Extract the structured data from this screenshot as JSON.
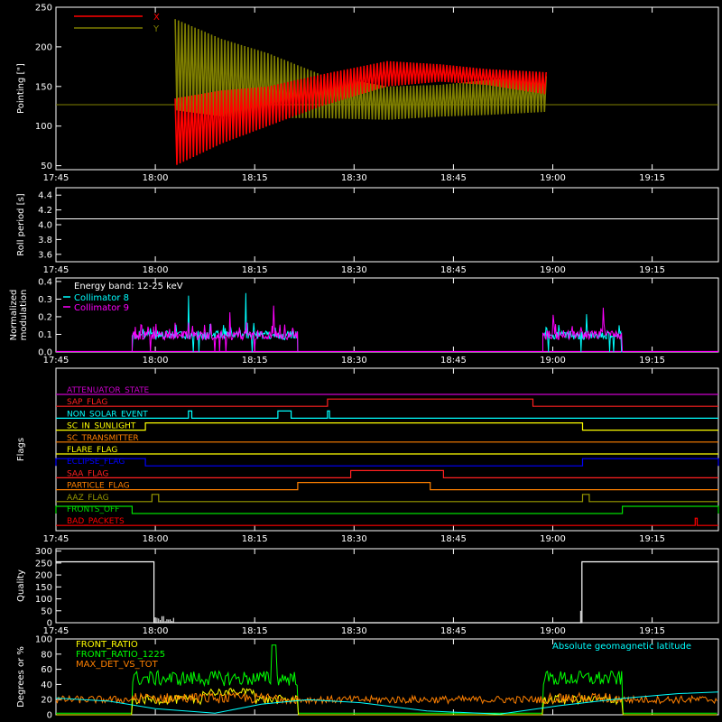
{
  "time_axis": {
    "range": [
      "17:45",
      "19:25"
    ],
    "tick_labels": [
      "17:45",
      "18:00",
      "18:15",
      "18:30",
      "18:45",
      "19:00",
      "19:15"
    ],
    "tick_minutes": [
      0,
      15,
      30,
      45,
      60,
      75,
      90
    ],
    "total_minutes": 100
  },
  "chart_data": [
    {
      "id": "pointing",
      "type": "line",
      "ylabel": "Pointing [\"]",
      "ylim": [
        45,
        250
      ],
      "yticks": [
        50,
        100,
        150,
        200,
        250
      ],
      "legend": [
        {
          "name": "X",
          "color": "#ff0000"
        },
        {
          "name": "Y",
          "color": "#7f7f00"
        }
      ],
      "series": [
        {
          "name": "X",
          "color": "#ff0000",
          "x_min": [
            0,
            15,
            18,
            25,
            32,
            40,
            50,
            58,
            65,
            74,
            79
          ],
          "lower": [
            127,
            127,
            50,
            78,
            100,
            125,
            150,
            156,
            152,
            140,
            127
          ],
          "upper": [
            127,
            127,
            135,
            145,
            150,
            165,
            182,
            178,
            172,
            168,
            127
          ]
        },
        {
          "name": "Y",
          "color": "#7f7f00",
          "x_min": [
            0,
            15,
            18,
            25,
            32,
            40,
            50,
            58,
            65,
            74,
            79
          ],
          "lower": [
            127,
            127,
            120,
            112,
            110,
            110,
            108,
            112,
            114,
            118,
            127
          ],
          "upper": [
            127,
            127,
            235,
            210,
            192,
            165,
            150,
            152,
            158,
            163,
            127
          ]
        }
      ]
    },
    {
      "id": "roll",
      "type": "line",
      "ylabel": "Roll period [s]",
      "ylim": [
        3.5,
        4.5
      ],
      "yticks": [
        3.6,
        3.8,
        4.0,
        4.2,
        4.4
      ],
      "series": [
        {
          "name": "roll",
          "color": "#ffffff",
          "x_min": [
            0,
            100
          ],
          "y": [
            4.08,
            4.08
          ]
        }
      ]
    },
    {
      "id": "modulation",
      "type": "line",
      "ylabel": "Normalized modulation",
      "ylim": [
        0,
        0.42
      ],
      "yticks": [
        0,
        0.1,
        0.2,
        0.3,
        0.4
      ],
      "annotation": "Energy band: 12-25 keV",
      "legend": [
        {
          "name": "Collimator 8",
          "color": "#00ffff"
        },
        {
          "name": "Collimator 9",
          "color": "#ff00ff"
        }
      ],
      "active_intervals": [
        [
          11.5,
          36.5
        ],
        [
          73.5,
          85.5
        ]
      ],
      "baseline": 0.1,
      "series": [
        {
          "name": "Collimator 8",
          "color": "#00ffff"
        },
        {
          "name": "Collimator 9",
          "color": "#ff00ff"
        }
      ]
    },
    {
      "id": "flags",
      "type": "line",
      "ylabel": "Flags",
      "series": [
        {
          "name": "ATTENUATOR_STATE",
          "color": "#cc00cc",
          "steps": []
        },
        {
          "name": "SAP_FLAG",
          "color": "#ff2020",
          "steps": [
            [
              41,
              72
            ]
          ]
        },
        {
          "name": "NON_SOLAR_EVENT",
          "color": "#00ffff",
          "steps": [
            [
              20,
              20.5
            ],
            [
              33.5,
              35.5
            ],
            [
              41,
              41.3
            ]
          ]
        },
        {
          "name": "SC_IN_SUNLIGHT",
          "color": "#ffff00",
          "steps": [
            [
              13.5,
              79.5
            ]
          ]
        },
        {
          "name": "SC_TRANSMITTER",
          "color": "#ff8000",
          "steps": []
        },
        {
          "name": "FLARE_FLAG",
          "color": "#ffff00",
          "steps": []
        },
        {
          "name": "ECLIPSE_FLAG",
          "color": "#0000ff",
          "steps": [
            [
              0,
              13.5
            ],
            [
              79.5,
              100
            ]
          ]
        },
        {
          "name": "SAA_FLAG",
          "color": "#ff2020",
          "steps": [
            [
              44.5,
              58.5
            ]
          ]
        },
        {
          "name": "PARTICLE_FLAG",
          "color": "#ff8000",
          "steps": [
            [
              36.5,
              56.5
            ]
          ]
        },
        {
          "name": "AAZ_FLAG",
          "color": "#999900",
          "steps": [
            [
              14.5,
              15.5
            ],
            [
              79.5,
              80.5
            ]
          ]
        },
        {
          "name": "FRONTS_OFF",
          "color": "#00dd00",
          "steps": [
            [
              0,
              11.5
            ],
            [
              85.5,
              100
            ]
          ]
        },
        {
          "name": "BAD_PACKETS",
          "color": "#ff0000",
          "steps": [
            [
              96.5,
              96.8
            ]
          ]
        }
      ]
    },
    {
      "id": "quality",
      "type": "line",
      "ylabel": "Quality",
      "ylim": [
        0,
        310
      ],
      "yticks": [
        0,
        50,
        100,
        150,
        200,
        250,
        300
      ],
      "series": [
        {
          "name": "Quality",
          "color": "#ffffff",
          "x_min": [
            0,
            14.8,
            14.8,
            79.4,
            79.4,
            100
          ],
          "y": [
            255,
            255,
            0,
            0,
            255,
            255
          ]
        }
      ]
    },
    {
      "id": "ratios",
      "type": "line",
      "ylabel": "Degrees or %",
      "ylim": [
        0,
        100
      ],
      "yticks": [
        0,
        20,
        40,
        60,
        80,
        100
      ],
      "legend": [
        {
          "name": "FRONT_RATIO",
          "color": "#ffff00"
        },
        {
          "name": "FRONT_RATIO_1225",
          "color": "#00ff00"
        },
        {
          "name": "MAX_DET_VS_TOT",
          "color": "#ff8000"
        }
      ],
      "annotation": "Absolute geomagnetic latitude",
      "annotation_color": "#00ffff",
      "series": [
        {
          "name": "FRONT_RATIO",
          "color": "#ffff00"
        },
        {
          "name": "FRONT_RATIO_1225",
          "color": "#00ff00"
        },
        {
          "name": "MAX_DET_VS_TOT",
          "color": "#ff8000"
        },
        {
          "name": "Absolute geomagnetic latitude",
          "color": "#00ffff",
          "x_min": [
            0,
            8,
            15,
            24,
            31,
            38,
            46,
            56,
            67,
            76,
            86,
            94,
            100
          ],
          "y": [
            22,
            18,
            8,
            2,
            14,
            20,
            16,
            5,
            1,
            12,
            22,
            28,
            30
          ]
        }
      ]
    }
  ]
}
